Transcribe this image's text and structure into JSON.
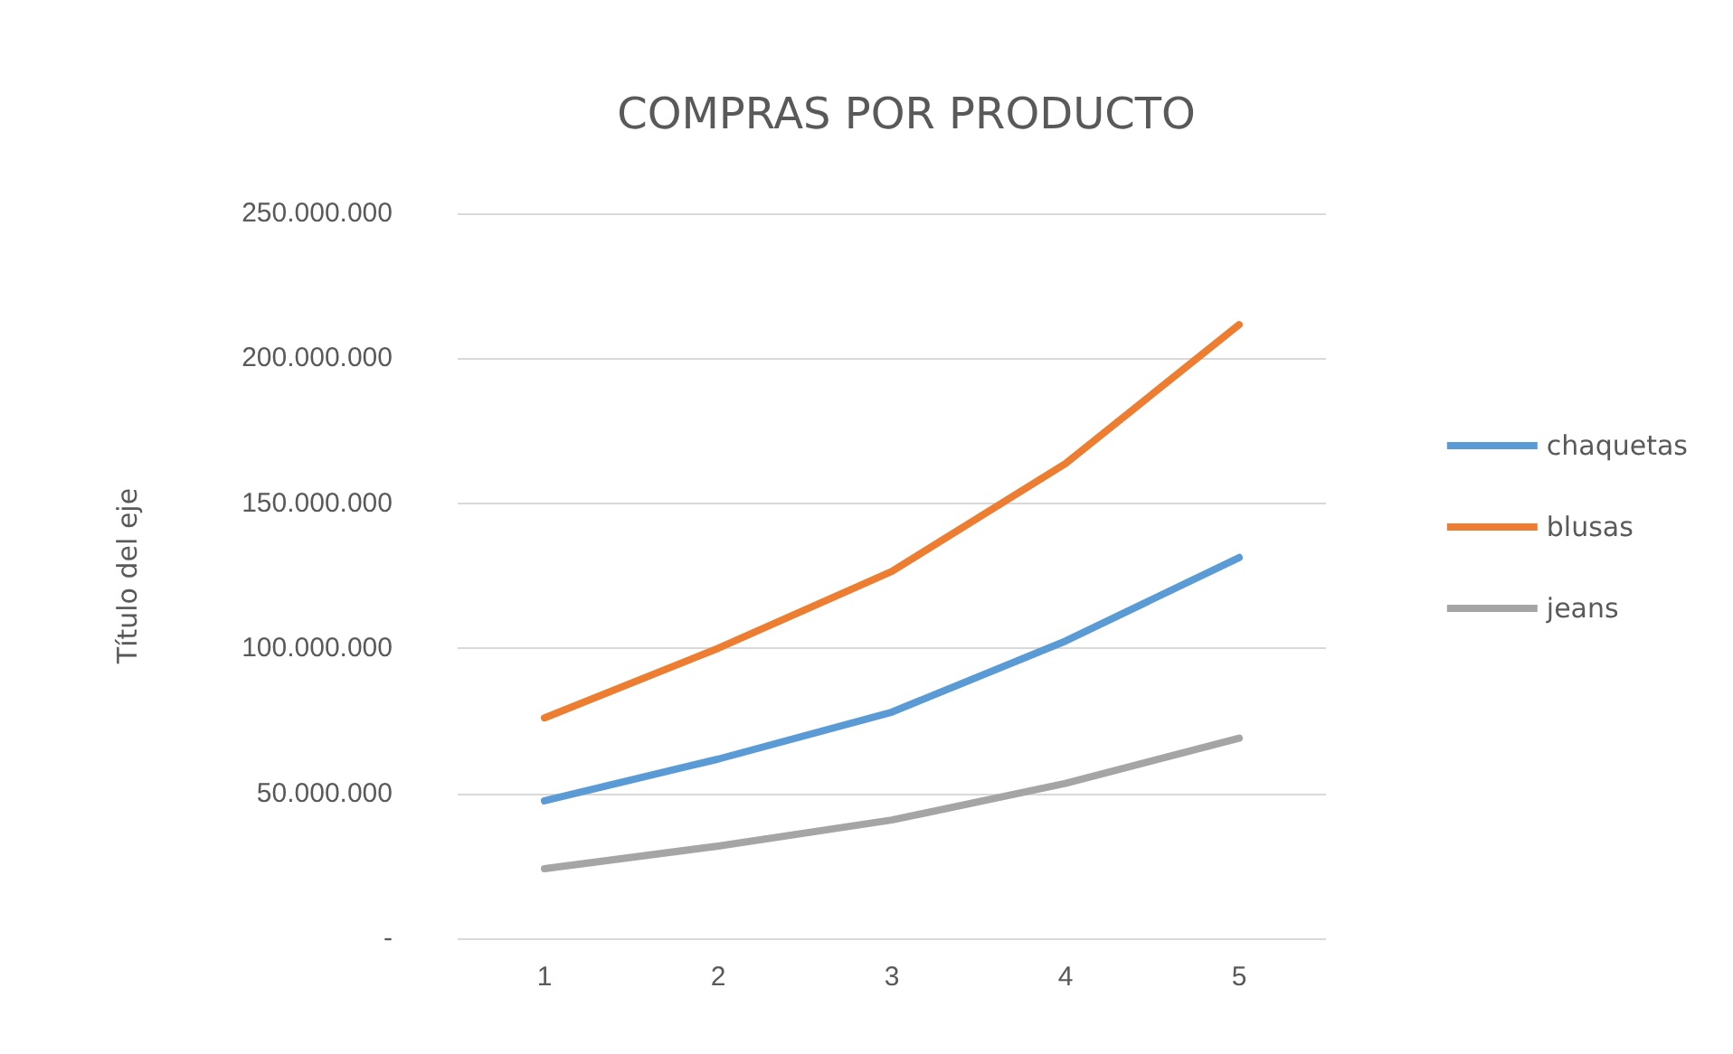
{
  "chart_data": {
    "type": "line",
    "title": "COMPRAS POR PRODUCTO",
    "ylabel": "Título del eje",
    "categories": [
      "1",
      "2",
      "3",
      "4",
      "5"
    ],
    "series": [
      {
        "name": "chaquetas",
        "color": "#5b9bd5",
        "values": [
          47400000,
          61800000,
          78000000,
          102500000,
          131300000
        ]
      },
      {
        "name": "blusas",
        "color": "#ed7d31",
        "values": [
          76000000,
          100000000,
          126500000,
          163700000,
          211600000
        ]
      },
      {
        "name": "jeans",
        "color": "#a5a5a5",
        "values": [
          24000000,
          31800000,
          40800000,
          53400000,
          69000000
        ]
      }
    ],
    "ylim": [
      0,
      250000000
    ],
    "yticks": [
      {
        "value": 0,
        "label": "-"
      },
      {
        "value": 50000000,
        "label": "50.000.000"
      },
      {
        "value": 100000000,
        "label": "100.000.000"
      },
      {
        "value": 150000000,
        "label": "150.000.000"
      },
      {
        "value": 200000000,
        "label": "200.000.000"
      },
      {
        "value": 250000000,
        "label": "250.000.000"
      }
    ],
    "grid": "y",
    "legend": "right",
    "marker": "none",
    "line_style": "solid"
  }
}
